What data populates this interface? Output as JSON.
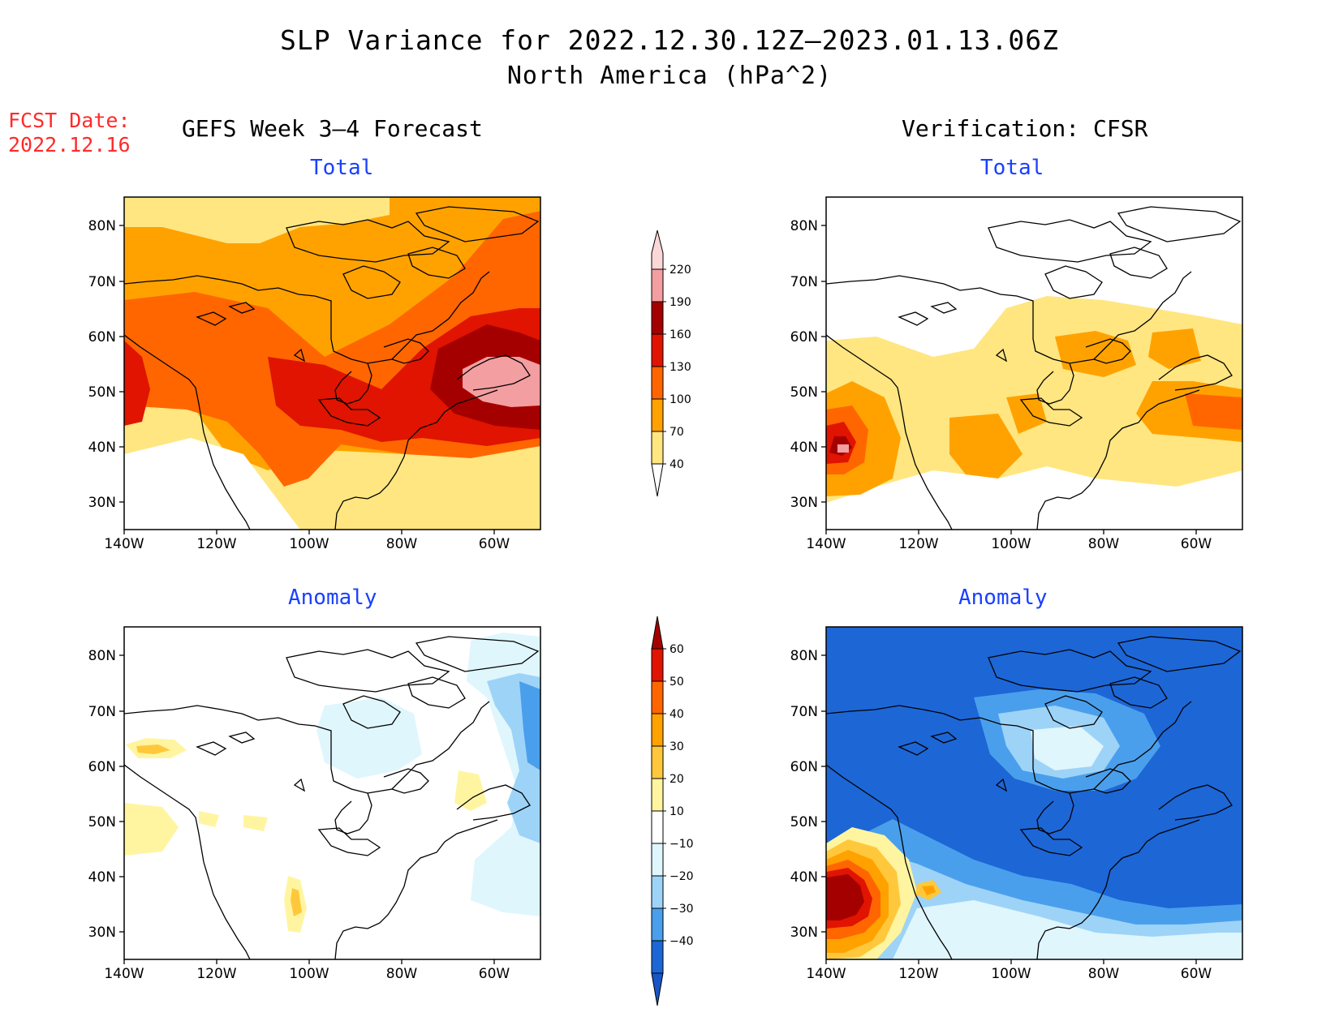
{
  "title": "SLP Variance for 2022.12.30.12Z–2023.01.13.06Z",
  "subtitle": "North America (hPa^2)",
  "fcst_date_label": "FCST Date:",
  "fcst_date": "2022.12.16",
  "left_header": "GEFS Week 3–4 Forecast",
  "right_header": "Verification: CFSR",
  "panel_labels": {
    "total": "Total",
    "anomaly": "Anomaly"
  },
  "axes": {
    "lat_ticks": [
      "80N",
      "70N",
      "60N",
      "50N",
      "40N",
      "30N"
    ],
    "lon_ticks": [
      "140W",
      "120W",
      "100W",
      "80W",
      "60W"
    ]
  },
  "colorbar_total": {
    "levels": [
      "40",
      "70",
      "100",
      "130",
      "160",
      "190",
      "220"
    ],
    "colors": [
      "#ffe680",
      "#ffa200",
      "#ff6600",
      "#e01400",
      "#a50000",
      "#f39ea0",
      "#fbd7d7"
    ]
  },
  "colorbar_anomaly": {
    "levels": [
      "60",
      "50",
      "40",
      "30",
      "20",
      "10",
      "−10",
      "−20",
      "−30",
      "−40"
    ],
    "colors": [
      "#a50000",
      "#e01400",
      "#ff6600",
      "#ffa200",
      "#ffc83c",
      "#fff5a0",
      "#ffffff",
      "#dff6fd",
      "#9ed3f8",
      "#4a9fec",
      "#1d66d6",
      "#1a55c8"
    ]
  },
  "colors": {
    "land_outline": "#000000",
    "title_red": "#ff2a2a",
    "label_blue": "#1a40ff"
  }
}
